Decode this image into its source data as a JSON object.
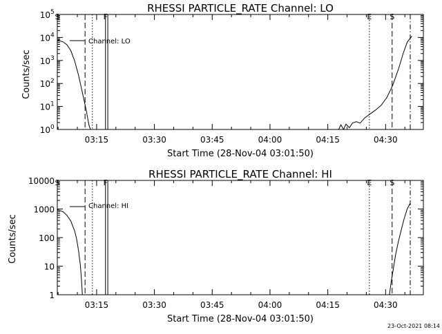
{
  "footer": {
    "timestamp": "23-Oct-2021 08:14"
  },
  "chart_data": [
    {
      "type": "line",
      "title": "RHESSI PARTICLE_RATE Channel: LO",
      "xlabel": "Start Time (28-Nov-04 03:01:50)",
      "ylabel": "Counts/sec",
      "yscale": "log",
      "ylim": [
        1,
        100000
      ],
      "xlim_minutes": [
        3.0,
        98.0
      ],
      "x_ticks": [
        {
          "label": "03:15",
          "min": 13.2
        },
        {
          "label": "03:30",
          "min": 28.2
        },
        {
          "label": "03:45",
          "min": 43.2
        },
        {
          "label": "04:00",
          "min": 58.2
        },
        {
          "label": "04:15",
          "min": 73.2
        },
        {
          "label": "04:30",
          "min": 88.2
        }
      ],
      "y_ticks": [
        {
          "label": "10",
          "sup": "0",
          "v": 1
        },
        {
          "label": "10",
          "sup": "1",
          "v": 10
        },
        {
          "label": "10",
          "sup": "2",
          "v": 100
        },
        {
          "label": "10",
          "sup": "3",
          "v": 1000
        },
        {
          "label": "10",
          "sup": "4",
          "v": 10000
        },
        {
          "label": "10",
          "sup": "5",
          "v": 100000
        }
      ],
      "legend": {
        "label": "Channel: LO",
        "placement": "top-left"
      },
      "markers": [
        {
          "label": "S",
          "min": 3.0,
          "style": "dashdot"
        },
        {
          "label": "",
          "min": 10.2,
          "style": "dashed"
        },
        {
          "label": "",
          "min": 12.1,
          "style": "dotted"
        },
        {
          "label": "F",
          "min": 15.5,
          "style": "solid"
        },
        {
          "label": "",
          "min": 16.1,
          "style": "solid"
        },
        {
          "label": "E",
          "min": 84.0,
          "style": "dotted"
        },
        {
          "label": "S",
          "min": 89.9,
          "style": "dashed"
        },
        {
          "label": "",
          "min": 94.6,
          "style": "dashdot"
        }
      ],
      "series": [
        {
          "name": "Channel: LO",
          "segments": [
            [
              [
                3.0,
                7800
              ],
              [
                4.5,
                6400
              ],
              [
                5.5,
                4800
              ],
              [
                6.5,
                2700
              ],
              [
                7.5,
                950
              ],
              [
                8.5,
                230
              ],
              [
                9.5,
                40
              ],
              [
                10.5,
                7
              ],
              [
                11.2,
                1.6
              ],
              [
                11.6,
                1
              ]
            ],
            [
              [
                76.0,
                1
              ],
              [
                76.6,
                1.6
              ],
              [
                77.3,
                1
              ],
              [
                77.9,
                1.7
              ],
              [
                78.8,
                1.2
              ],
              [
                79.6,
                1.9
              ],
              [
                80.6,
                2.2
              ],
              [
                81.6,
                1.9
              ],
              [
                82.8,
                3.2
              ],
              [
                84.0,
                4.5
              ],
              [
                85.5,
                6.8
              ],
              [
                87.0,
                11
              ],
              [
                88.5,
                24
              ],
              [
                90.0,
                80
              ],
              [
                91.5,
                400
              ],
              [
                92.8,
                2100
              ],
              [
                93.8,
                6200
              ],
              [
                95.0,
                11500
              ]
            ]
          ]
        }
      ]
    },
    {
      "type": "line",
      "title": "RHESSI PARTICLE_RATE Channel: HI",
      "xlabel": "Start Time (28-Nov-04 03:01:50)",
      "ylabel": "Counts/sec",
      "yscale": "log",
      "ylim": [
        1,
        10000
      ],
      "xlim_minutes": [
        3.0,
        98.0
      ],
      "x_ticks": [
        {
          "label": "03:15",
          "min": 13.2
        },
        {
          "label": "03:30",
          "min": 28.2
        },
        {
          "label": "03:45",
          "min": 43.2
        },
        {
          "label": "04:00",
          "min": 58.2
        },
        {
          "label": "04:15",
          "min": 73.2
        },
        {
          "label": "04:30",
          "min": 88.2
        }
      ],
      "y_ticks": [
        {
          "label": "1",
          "v": 1
        },
        {
          "label": "10",
          "v": 10
        },
        {
          "label": "100",
          "v": 100
        },
        {
          "label": "1000",
          "v": 1000
        },
        {
          "label": "10000",
          "v": 10000
        }
      ],
      "legend": {
        "label": "Channel: HI",
        "placement": "top-left"
      },
      "markers": [
        {
          "label": "S",
          "min": 3.0,
          "style": "dashdot"
        },
        {
          "label": "",
          "min": 10.2,
          "style": "dashed"
        },
        {
          "label": "",
          "min": 12.1,
          "style": "dotted"
        },
        {
          "label": "F",
          "min": 15.5,
          "style": "solid"
        },
        {
          "label": "",
          "min": 16.1,
          "style": "solid"
        },
        {
          "label": "E",
          "min": 84.0,
          "style": "dotted"
        },
        {
          "label": "S",
          "min": 89.9,
          "style": "dashed"
        },
        {
          "label": "",
          "min": 94.6,
          "style": "dashdot"
        }
      ],
      "series": [
        {
          "name": "Channel: HI",
          "segments": [
            [
              [
                3.0,
                950
              ],
              [
                4.5,
                800
              ],
              [
                5.5,
                600
              ],
              [
                6.5,
                380
              ],
              [
                7.5,
                170
              ],
              [
                8.0,
                90
              ],
              [
                8.5,
                35
              ],
              [
                9.0,
                10
              ],
              [
                9.3,
                3
              ],
              [
                9.5,
                1
              ]
            ],
            [
              [
                89.2,
                1
              ],
              [
                89.6,
                2.5
              ],
              [
                90.2,
                8
              ],
              [
                90.8,
                25
              ],
              [
                91.5,
                70
              ],
              [
                92.2,
                170
              ],
              [
                93.0,
                450
              ],
              [
                93.8,
                1000
              ],
              [
                94.6,
                1600
              ]
            ]
          ]
        }
      ]
    }
  ]
}
